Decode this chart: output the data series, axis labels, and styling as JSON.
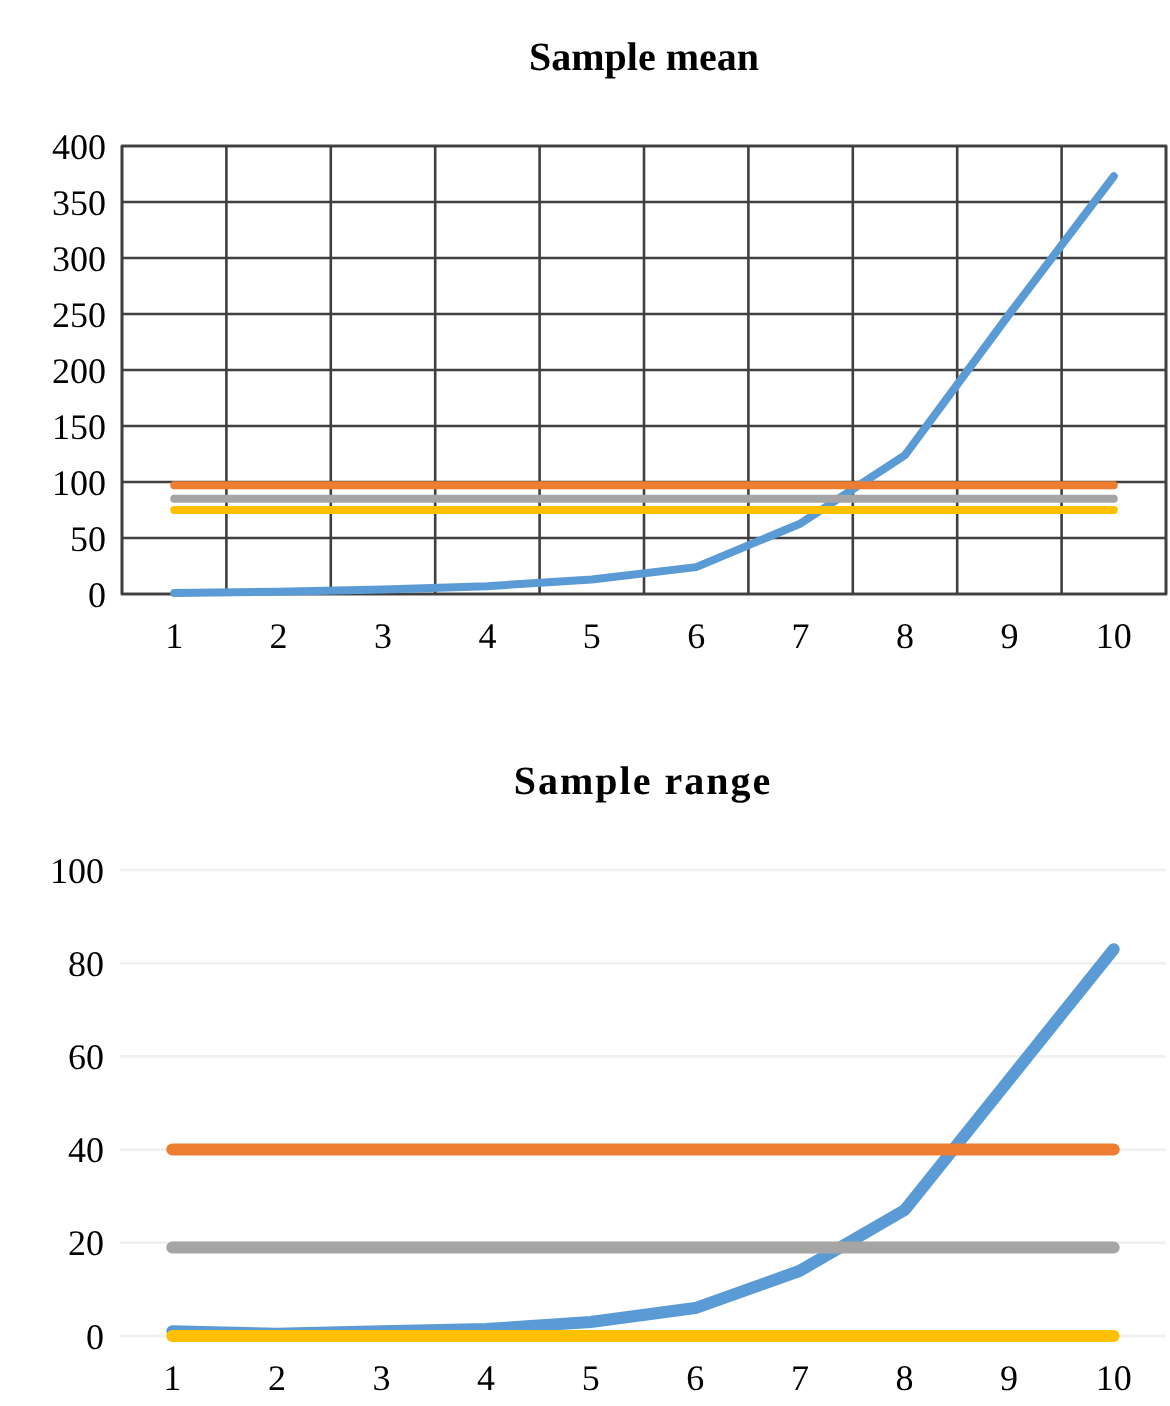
{
  "chart_data": [
    {
      "type": "line",
      "title": "Sample mean",
      "categories": [
        "1",
        "2",
        "3",
        "4",
        "5",
        "6",
        "7",
        "8",
        "9",
        "10"
      ],
      "series": [
        {
          "color": "#5b9bd5",
          "values": [
            1,
            2,
            4,
            7,
            13,
            24,
            63,
            124,
            250,
            373
          ]
        },
        {
          "color": "#ed7d31",
          "values": [
            97,
            97,
            97,
            97,
            97,
            97,
            97,
            97,
            97,
            97
          ]
        },
        {
          "color": "#a5a5a5",
          "values": [
            85,
            85,
            85,
            85,
            85,
            85,
            85,
            85,
            85,
            85
          ]
        },
        {
          "color": "#ffc000",
          "values": [
            75,
            75,
            75,
            75,
            75,
            75,
            75,
            75,
            75,
            75
          ]
        }
      ],
      "ylim": [
        0,
        400
      ],
      "yticks": [
        0,
        50,
        100,
        150,
        200,
        250,
        300,
        350,
        400
      ],
      "grid": true,
      "marker": "none",
      "line_style": "solid"
    },
    {
      "type": "line",
      "title": "Sample range",
      "categories": [
        "1",
        "2",
        "3",
        "4",
        "5",
        "6",
        "7",
        "8",
        "9",
        "10"
      ],
      "series": [
        {
          "color": "#5b9bd5",
          "values": [
            1,
            0.5,
            1,
            1.5,
            3,
            6,
            14,
            27,
            55,
            83
          ]
        },
        {
          "color": "#ed7d31",
          "values": [
            40,
            40,
            40,
            40,
            40,
            40,
            40,
            40,
            40,
            40
          ]
        },
        {
          "color": "#a5a5a5",
          "values": [
            19,
            19,
            19,
            19,
            19,
            19,
            19,
            19,
            19,
            19
          ]
        },
        {
          "color": "#ffc000",
          "values": [
            0,
            0,
            0,
            0,
            0,
            0,
            0,
            0,
            0,
            0
          ]
        }
      ],
      "ylim": [
        0,
        100
      ],
      "yticks": [
        0,
        20,
        40,
        60,
        80,
        100
      ],
      "grid": "y",
      "marker": "none",
      "line_style": "solid"
    }
  ]
}
